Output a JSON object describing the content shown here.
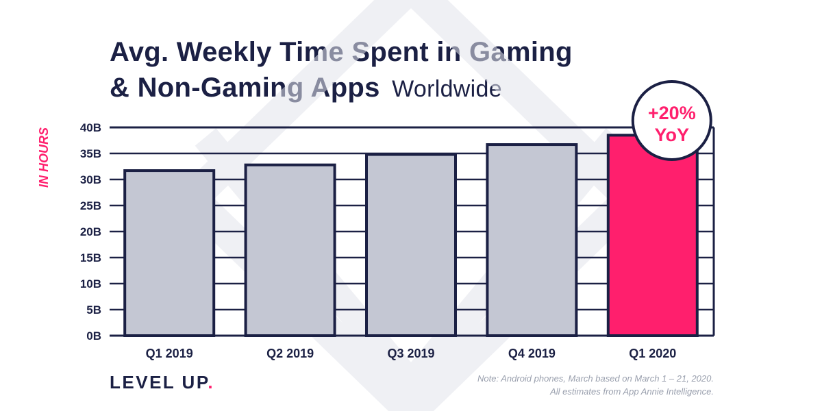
{
  "header": {
    "title_line1": "Avg. Weekly Time Spent in Gaming",
    "title_line2": "& Non-Gaming Apps",
    "subtitle": "Worldwide"
  },
  "badge": {
    "line1": "+20%",
    "line2": "YoY"
  },
  "footer": {
    "brand": "LEVEL UP",
    "brand_dot": ".",
    "note_line1": "Note: Android phones, March based on March 1 – 21, 2020.",
    "note_line2": "All estimates from App Annie Intelligence."
  },
  "colors": {
    "navy": "#1b2044",
    "bar_gray": "#c4c7d3",
    "highlight_pink": "#ff1f6d",
    "watermark": "#e3e5ec"
  },
  "chart_data": {
    "type": "bar",
    "categories": [
      "Q1 2019",
      "Q2 2019",
      "Q3 2019",
      "Q4 2019",
      "Q1 2020"
    ],
    "values": [
      31.7,
      32.8,
      34.8,
      36.7,
      38.5
    ],
    "highlight_index": 4,
    "ylabel": "IN HOURS",
    "ylim": [
      0,
      40
    ],
    "yticks": [
      0,
      5,
      10,
      15,
      20,
      25,
      30,
      35,
      40
    ],
    "ytick_labels": [
      "0B",
      "5B",
      "10B",
      "15B",
      "20B",
      "25B",
      "30B",
      "35B",
      "40B"
    ],
    "grid": true
  }
}
